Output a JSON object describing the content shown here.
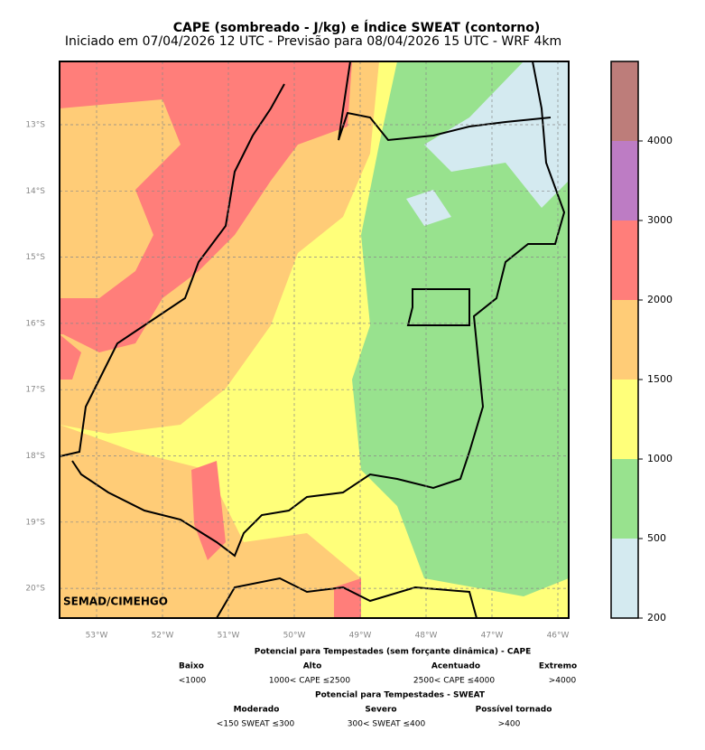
{
  "header": {
    "title": "CAPE (sombreado - J/kg) e Índice SWEAT (contorno)",
    "subtitle": "Iniciado em 07/04/2026 12 UTC - Previsão para 08/04/2026 15 UTC - WRF 4km"
  },
  "map": {
    "lat_labels": [
      "13°S",
      "14°S",
      "15°S",
      "16°S",
      "17°S",
      "18°S",
      "19°S",
      "20°S"
    ],
    "lon_labels": [
      "53°W",
      "52°W",
      "51°W",
      "50°W",
      "49°W",
      "48°W",
      "47°W",
      "46°W"
    ],
    "watermark": "SEMAD/CIMEHGO"
  },
  "colorbar": {
    "ticks": [
      200,
      500,
      1000,
      1500,
      2000,
      3000,
      4000
    ],
    "colors": [
      "#d4eaf0",
      "#98e28e",
      "#ffff7a",
      "#ffcc77",
      "#ff7e7a",
      "#bd7cc4",
      "#bd7d7a"
    ]
  },
  "legend": {
    "cape_title": "Potencial para Tempestades (sem forçante dinâmica) - CAPE",
    "cape": [
      {
        "name": "Baixo",
        "range": "<1000"
      },
      {
        "name": "Alto",
        "range": "1000< CAPE ≤2500"
      },
      {
        "name": "Acentuado",
        "range": "2500< CAPE ≤4000"
      },
      {
        "name": "Extremo",
        "range": ">4000"
      }
    ],
    "sweat_title": "Potencial para Tempestades - SWEAT",
    "sweat": [
      {
        "name": "Moderado",
        "range": "<150 SWEAT ≤300"
      },
      {
        "name": "Severo",
        "range": "300< SWEAT ≤400"
      },
      {
        "name": "Possível tornado",
        "range": ">400"
      }
    ]
  }
}
